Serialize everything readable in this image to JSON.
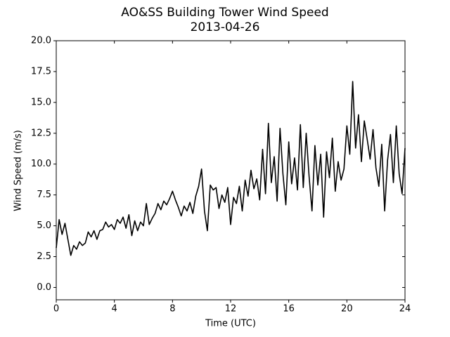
{
  "chart_data": {
    "type": "line",
    "title": "AO&SS Building Tower Wind Speed",
    "subtitle": "2013-04-26",
    "xlabel": "Time (UTC)",
    "ylabel": "Wind Speed (m/s)",
    "color": "#000000",
    "x": [
      0,
      0.2,
      0.4,
      0.6,
      0.8,
      1,
      1.2,
      1.4,
      1.6,
      1.8,
      2,
      2.2,
      2.4,
      2.6,
      2.8,
      3,
      3.2,
      3.4,
      3.6,
      3.8,
      4,
      4.2,
      4.4,
      4.6,
      4.8,
      5,
      5.2,
      5.4,
      5.6,
      5.8,
      6,
      6.2,
      6.4,
      6.6,
      6.8,
      7,
      7.2,
      7.4,
      7.6,
      7.8,
      8,
      8.2,
      8.4,
      8.6,
      8.8,
      9,
      9.2,
      9.4,
      9.6,
      9.8,
      10,
      10.2,
      10.4,
      10.6,
      10.8,
      11,
      11.2,
      11.4,
      11.6,
      11.8,
      12,
      12.2,
      12.4,
      12.6,
      12.8,
      13,
      13.2,
      13.4,
      13.6,
      13.8,
      14,
      14.2,
      14.4,
      14.6,
      14.8,
      15,
      15.2,
      15.4,
      15.6,
      15.8,
      16,
      16.2,
      16.4,
      16.6,
      16.8,
      17,
      17.2,
      17.4,
      17.6,
      17.8,
      18,
      18.2,
      18.4,
      18.6,
      18.8,
      19,
      19.2,
      19.4,
      19.6,
      19.8,
      20,
      20.2,
      20.4,
      20.6,
      20.8,
      21,
      21.2,
      21.4,
      21.6,
      21.8,
      22,
      22.2,
      22.4,
      22.6,
      22.8,
      23,
      23.2,
      23.4,
      23.6,
      23.8,
      24
    ],
    "values": [
      3.2,
      5.5,
      4.3,
      5.2,
      3.9,
      2.6,
      3.4,
      3.1,
      3.7,
      3.4,
      3.6,
      4.5,
      4.1,
      4.6,
      3.9,
      4.6,
      4.7,
      5.3,
      4.9,
      5.1,
      4.7,
      5.5,
      5.2,
      5.7,
      4.8,
      5.9,
      4.2,
      5.4,
      4.6,
      5.3,
      5.0,
      6.8,
      5.1,
      5.6,
      6.0,
      6.8,
      6.3,
      7.0,
      6.7,
      7.2,
      7.8,
      7.1,
      6.5,
      5.8,
      6.6,
      6.2,
      6.9,
      6.0,
      7.4,
      8.2,
      9.6,
      6.2,
      4.6,
      8.3,
      7.9,
      8.1,
      6.4,
      7.5,
      6.9,
      8.1,
      5.1,
      7.3,
      6.8,
      8.2,
      6.2,
      8.7,
      7.4,
      9.5,
      8.0,
      8.8,
      7.1,
      11.2,
      7.6,
      13.3,
      8.5,
      10.6,
      7.0,
      12.9,
      9.2,
      6.7,
      11.8,
      8.4,
      10.5,
      7.9,
      13.2,
      8.1,
      12.5,
      9.0,
      6.2,
      11.5,
      8.3,
      10.8,
      5.7,
      11.0,
      8.9,
      12.1,
      7.8,
      10.2,
      8.7,
      9.6,
      13.1,
      10.8,
      16.7,
      11.3,
      14.0,
      10.2,
      13.5,
      12.0,
      10.4,
      12.8,
      9.7,
      8.2,
      11.6,
      6.2,
      10.3,
      12.4,
      8.5,
      13.1,
      9.2,
      7.6,
      11.3
    ],
    "xlim": [
      0,
      24
    ],
    "xticks": [
      0,
      4,
      8,
      12,
      16,
      20,
      24
    ],
    "ylim": [
      -1,
      20
    ],
    "yticks": [
      {
        "value": 0,
        "label": "0.0"
      },
      2.5,
      {
        "value": 5,
        "label": "5.0"
      },
      7.5,
      {
        "value": 10,
        "label": "10.0"
      },
      12.5,
      {
        "value": 15,
        "label": "15.0"
      },
      17.5,
      {
        "value": 20,
        "label": "20.0"
      }
    ],
    "grid": false
  }
}
